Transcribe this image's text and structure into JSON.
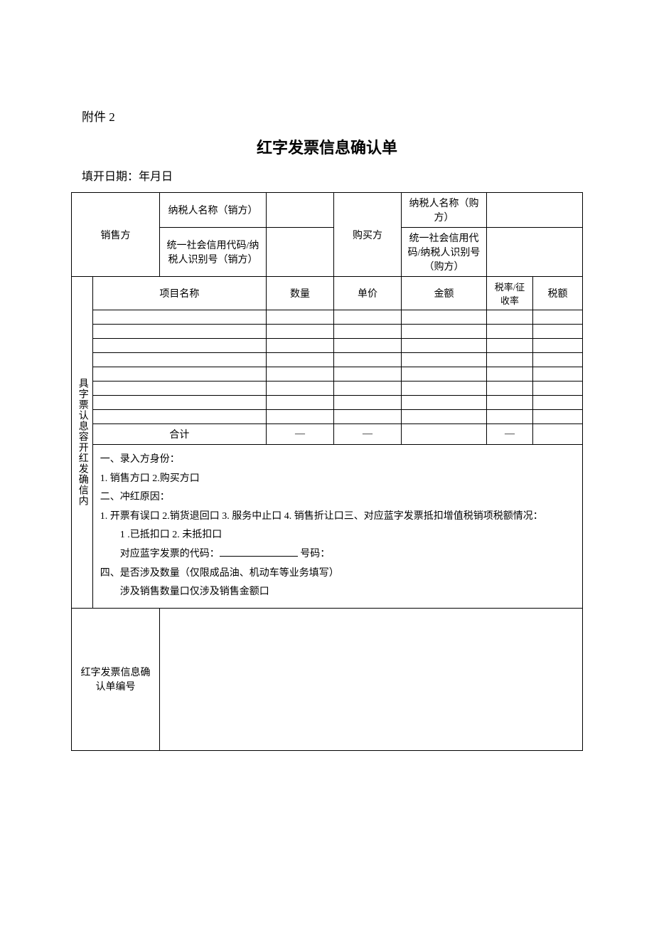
{
  "header": {
    "attachment": "附件 2",
    "title": "红字发票信息确认单",
    "date_prefix": "填开日期：年月日"
  },
  "seller": {
    "section_label": "销售方",
    "name_label": "纳税人名称（销方）",
    "name_value": "",
    "code_label": "统一社会信用代码/纳税人识别号（销方）",
    "code_value": ""
  },
  "buyer": {
    "section_label": "购买方",
    "name_label": "纳税人名称（购方）",
    "name_value": "",
    "code_label": "统一社会信用代码/纳税人识别号（购方）",
    "code_value": ""
  },
  "items_section": {
    "vertical_label": "具字票认息容开红发确信内",
    "headers": {
      "project": "项目名称",
      "quantity": "数量",
      "unit_price": "单价",
      "amount": "金额",
      "tax_rate": "税率/征收率",
      "tax_amount": "税额"
    },
    "total_label": "合计",
    "dash": "—"
  },
  "details": {
    "section1_title": "一、录入方身份：",
    "section1_opts": "1. 销售方口 2.购买方口",
    "section2_title": "二、冲红原因：",
    "section2_opts": "1. 开票有误口 2.销货退回口 3. 服务中止口 4. 销售折让口三、对应蓝字发票抵扣增值税销项税额情况：",
    "section3_opts": "1 .已抵扣口 2. 未抵扣口",
    "blue_code_label": "对应蓝字发票的代码：",
    "blue_num_label": "号码：",
    "section4_title": "四、是否涉及数量（仅限成品油、机动车等业务填写）",
    "section4_opts": "涉及销售数量口仅涉及销售金额口"
  },
  "confirm": {
    "label": "红字发票信息确认单编号",
    "value": ""
  }
}
